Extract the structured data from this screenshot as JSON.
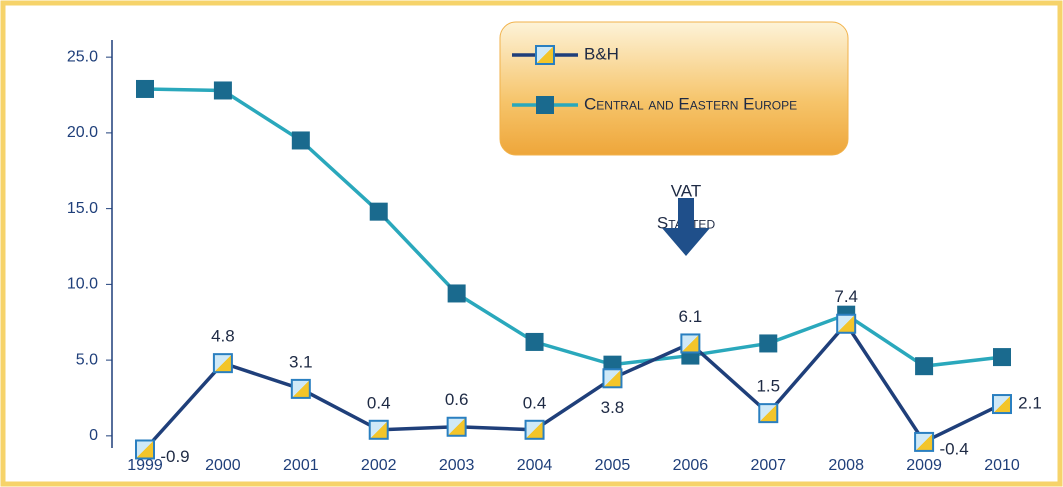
{
  "chart_data": {
    "type": "line",
    "categories": [
      "1999",
      "2000",
      "2001",
      "2002",
      "2003",
      "2004",
      "2005",
      "2006",
      "2007",
      "2008",
      "2009",
      "2010"
    ],
    "series": [
      {
        "name": "B&H",
        "color": "#1f3f7a",
        "values": [
          -0.9,
          4.8,
          3.1,
          0.4,
          0.6,
          0.4,
          3.8,
          6.1,
          1.5,
          7.4,
          -0.4,
          2.1
        ]
      },
      {
        "name": "Central and Eastern Europe",
        "color": "#2aa8bc",
        "values": [
          22.9,
          22.8,
          19.5,
          14.8,
          9.4,
          6.2,
          4.7,
          5.3,
          6.1,
          8.0,
          4.6,
          5.2
        ]
      }
    ],
    "ylim": [
      -1,
      26
    ],
    "yticks": [
      0,
      {
        "value": 5,
        "label": "5.0"
      },
      {
        "value": 10,
        "label": "10.0"
      },
      {
        "value": 15,
        "label": "15.0"
      },
      {
        "value": 20,
        "label": "20.0"
      },
      {
        "value": 25,
        "label": "25.0"
      }
    ],
    "annotations": [
      "VAT",
      "Started"
    ],
    "legend": "top-right"
  }
}
